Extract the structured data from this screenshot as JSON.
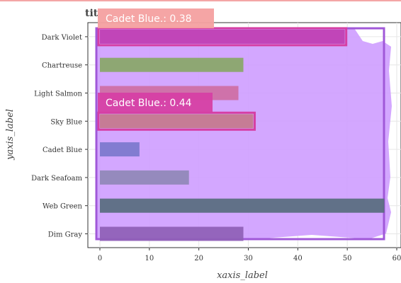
{
  "chart_data": {
    "type": "bar",
    "orientation": "horizontal",
    "title": "tit",
    "xlabel": "xaxis_label",
    "ylabel": "yaxis_label",
    "xlim": [
      -2,
      60
    ],
    "xticks": [
      0,
      10,
      20,
      30,
      40,
      50,
      60
    ],
    "grid": true,
    "categories": [
      "Dark Violet",
      "Chartreuse",
      "Light Salmon",
      "Sky Blue",
      "Cadet Blue",
      "Dark Seafoam",
      "Web Green",
      "Dim Gray"
    ],
    "values": [
      49.5,
      29,
      28,
      31,
      8,
      18,
      57.5,
      29
    ],
    "colors": [
      "#c03fb4",
      "#8aa76b",
      "#cf6fa5",
      "#c5798f",
      "#7d79cf",
      "#9188b9",
      "#5b6e82",
      "#9061b8"
    ],
    "annotations": [
      {
        "text": "Cadet Blue.: 0.38",
        "color": "#f4a0a0"
      },
      {
        "text": "Cadet Blue.: 0.44",
        "color": "#d63fa4"
      }
    ],
    "overlay_color": "#cfa0ff",
    "overlay_border": "#a058d8"
  }
}
